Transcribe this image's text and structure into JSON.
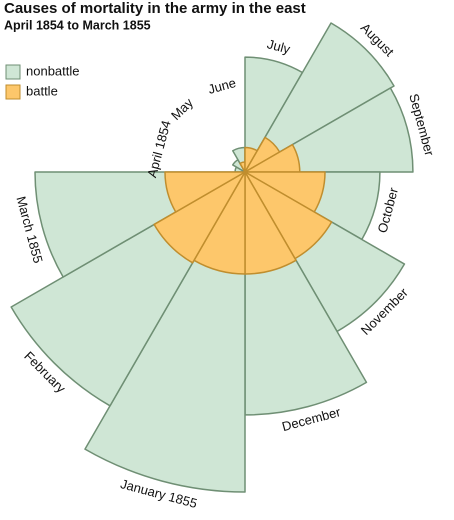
{
  "chart_data": {
    "type": "rose",
    "title": "Causes of mortality in the army in the east",
    "subtitle": "April 1854 to March 1855",
    "categories": [
      "April 1854",
      "May",
      "June",
      "July",
      "August",
      "September",
      "October",
      "November",
      "December",
      "January 1855",
      "February",
      "March 1855"
    ],
    "series": [
      {
        "name": "nonbattle",
        "color": "#cfe6d5",
        "values": [
          1,
          2,
          6,
          132,
          296,
          282,
          182,
          339,
          590,
          1024,
          729,
          441
        ]
      },
      {
        "name": "battle",
        "color": "#fdc76b",
        "values": [
          0,
          0,
          1,
          6,
          16,
          30,
          64,
          100,
          104,
          104,
          110,
          64
        ]
      }
    ]
  }
}
